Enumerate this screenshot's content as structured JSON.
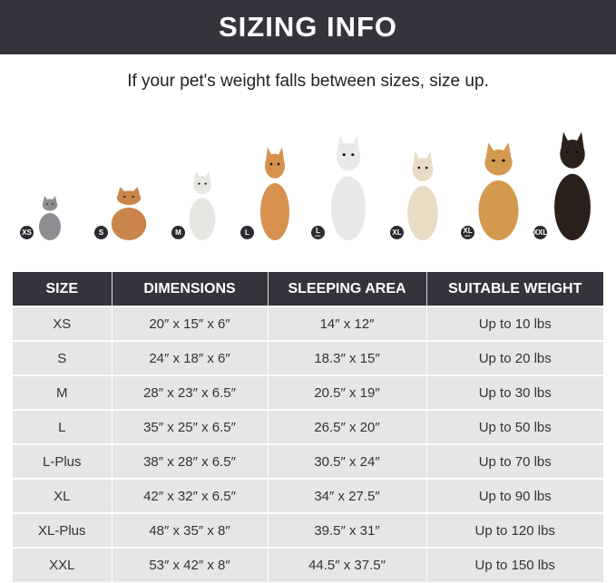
{
  "title": "SIZING INFO",
  "subtitle": "If your pet's weight falls between sizes, size up.",
  "pets": [
    {
      "badge": "XS",
      "plus": "",
      "animal": "cat",
      "color": "#8e8e92"
    },
    {
      "badge": "S",
      "plus": "",
      "animal": "pomeranian",
      "color": "#c9854a"
    },
    {
      "badge": "M",
      "plus": "",
      "animal": "french-bulldog",
      "color": "#e8e6e2"
    },
    {
      "badge": "L",
      "plus": "",
      "animal": "shiba-inu",
      "color": "#d7914f"
    },
    {
      "badge": "L",
      "plus": "plus",
      "animal": "border-collie",
      "color": "#e9e9e9"
    },
    {
      "badge": "XL",
      "plus": "",
      "animal": "labrador",
      "color": "#e9dcc4"
    },
    {
      "badge": "XL",
      "plus": "plus",
      "animal": "golden-retriever",
      "color": "#d39a4f"
    },
    {
      "badge": "XXL",
      "plus": "",
      "animal": "doberman",
      "color": "#2b211c"
    }
  ],
  "table": {
    "headers": [
      "SIZE",
      "DIMENSIONS",
      "SLEEPING AREA",
      "SUITABLE WEIGHT"
    ],
    "rows": [
      [
        "XS",
        "20″ x 15″ x 6″",
        "14″ x 12″",
        "Up to 10 lbs"
      ],
      [
        "S",
        "24″ x 18″ x 6″",
        "18.3″ x 15″",
        "Up to 20 lbs"
      ],
      [
        "M",
        "28″ x 23″ x 6.5″",
        "20.5″ x 19″",
        "Up to 30 lbs"
      ],
      [
        "L",
        "35″ x 25″ x 6.5″",
        "26.5″ x 20″",
        "Up to 50 lbs"
      ],
      [
        "L-Plus",
        "38″ x 28″ x 6.5″",
        "30.5″ x 24″",
        "Up to 70 lbs"
      ],
      [
        "XL",
        "42″ x 32″ x 6.5″",
        "34″ x 27.5″",
        "Up to 90 lbs"
      ],
      [
        "XL-Plus",
        "48″ x 35″ x 8″",
        "39.5″ x 31″",
        "Up to 120 lbs"
      ],
      [
        "XXL",
        "53″ x 42″ x 8″",
        "44.5″ x 37.5″",
        "Up to 150 lbs"
      ]
    ]
  }
}
